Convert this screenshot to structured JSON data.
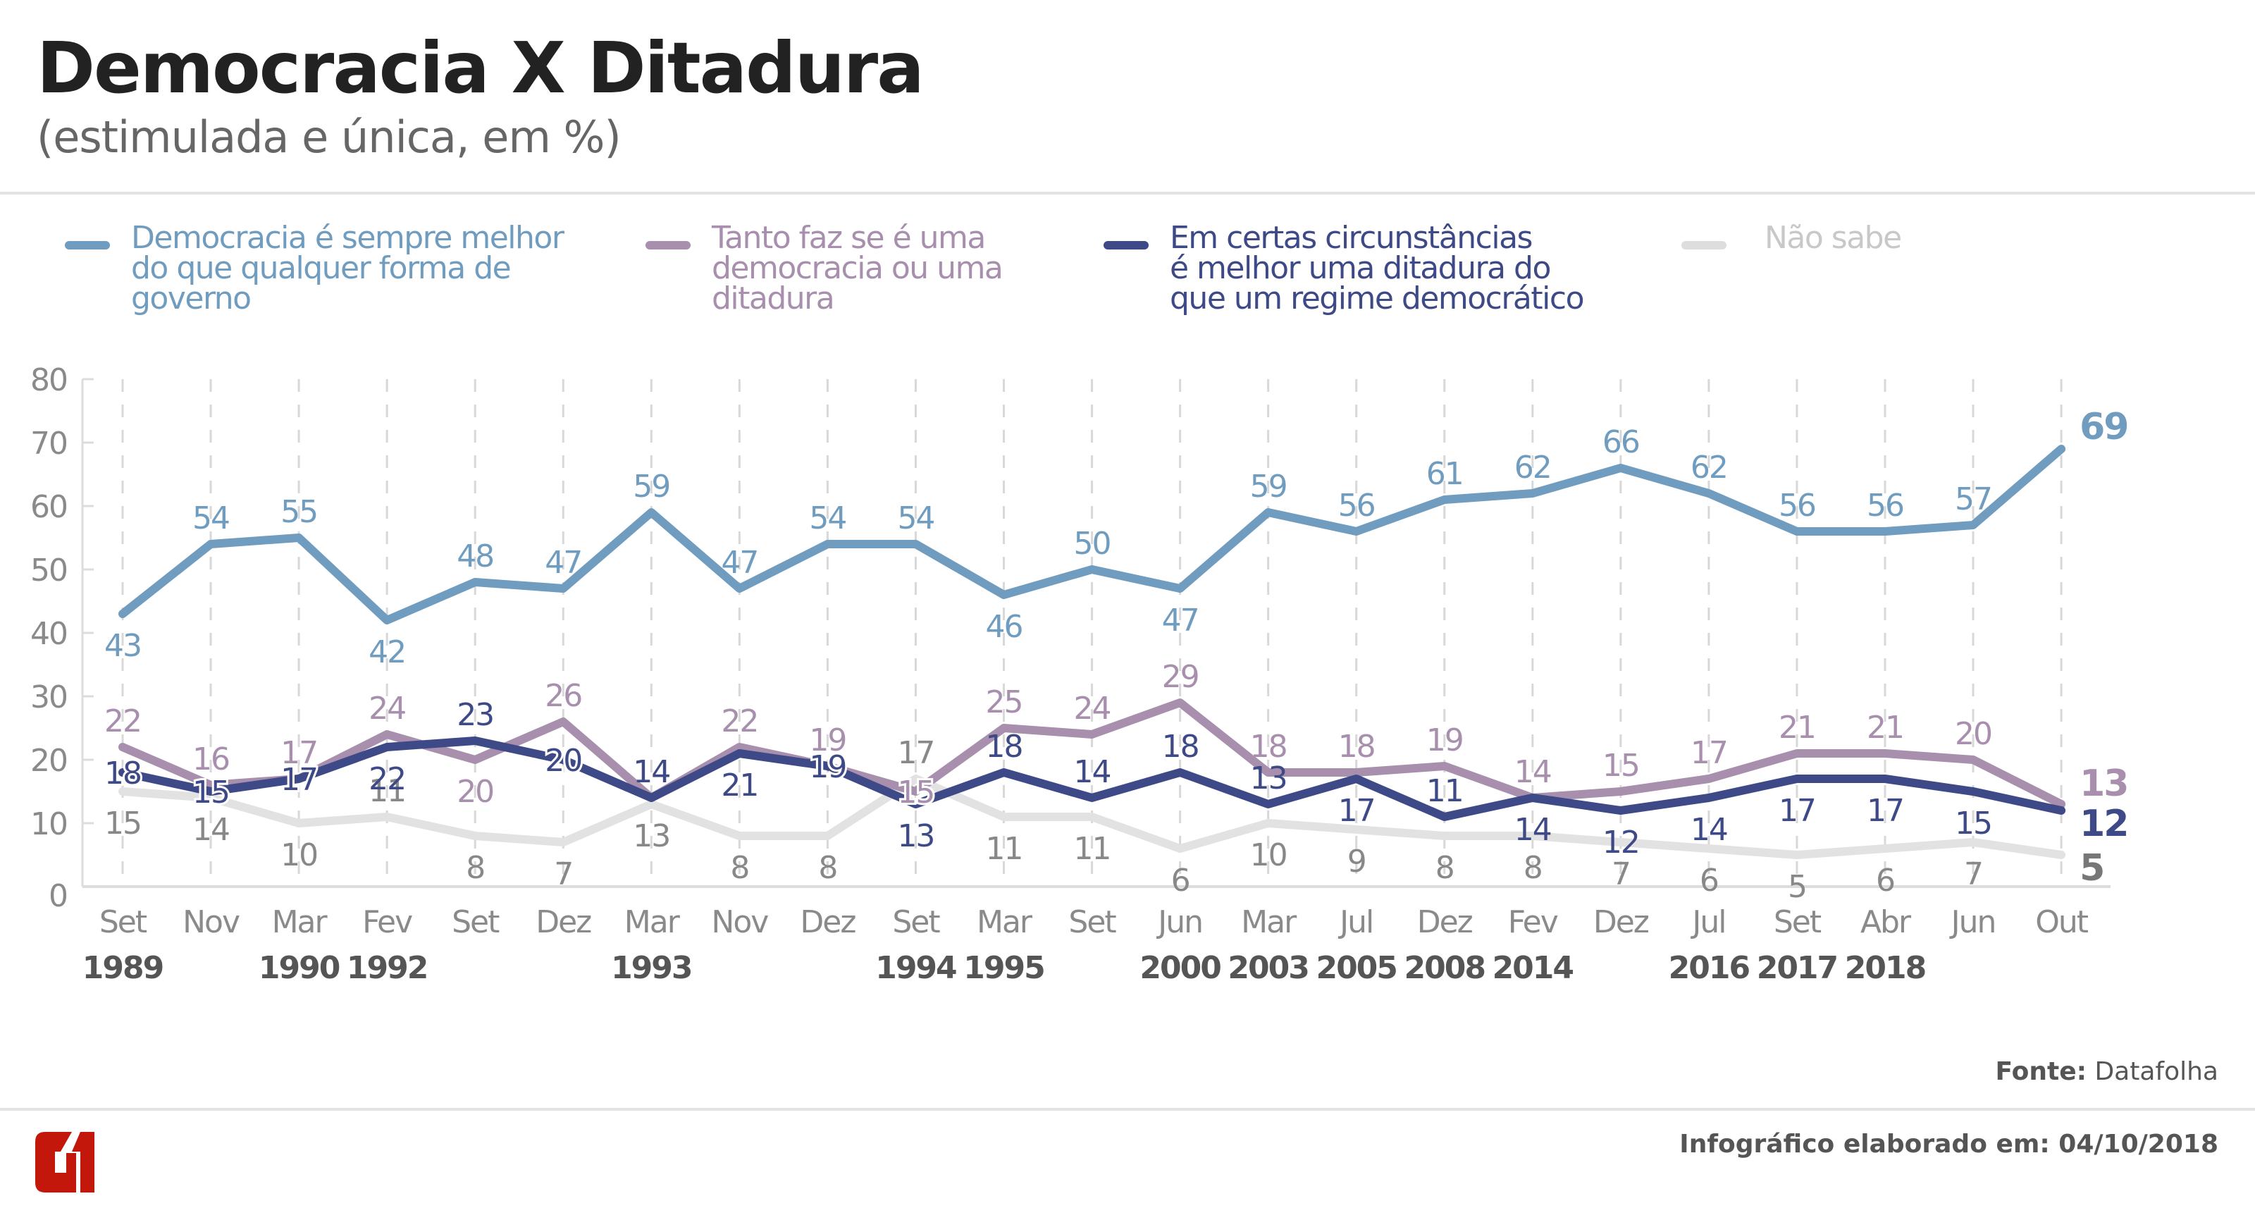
{
  "header": {
    "title": "Democracia X Ditadura",
    "subtitle": "(estimulada e única, em %)"
  },
  "legend": [
    {
      "label": "Democracia é sempre melhor\ndo que qualquer forma de\ngoverno",
      "color": "#6f9cbf"
    },
    {
      "label": "Tanto faz se é uma\ndemocracia ou uma\nditadura",
      "color": "#a78fad"
    },
    {
      "label": "Em certas circunstâncias\né melhor uma ditadura do\nque um regime democrático",
      "color": "#3e4a87"
    },
    {
      "label": "Não sabe",
      "color": "#dddddd"
    }
  ],
  "footer": {
    "source_prefix": "Fonte:",
    "source_name": "Datafolha",
    "credit": "Infográfico elaborado em: 04/10/2018",
    "logo_text": "G1",
    "logo_color": "#c4170c"
  },
  "chart_data": {
    "type": "line",
    "title": "Democracia X Ditadura",
    "subtitle": "(estimulada e única, em %)",
    "xlabel": "",
    "ylabel": "",
    "ylim": [
      0,
      80
    ],
    "yticks": [
      0,
      10,
      20,
      30,
      40,
      50,
      60,
      70,
      80
    ],
    "grid": "vertical dashed",
    "legend_position": "top",
    "categories": [
      "Set",
      "Nov",
      "Mar",
      "Fev",
      "Set",
      "Dez",
      "Mar",
      "Nov",
      "Dez",
      "Set",
      "Mar",
      "Set",
      "Jun",
      "Mar",
      "Jul",
      "Dez",
      "Fev",
      "Dez",
      "Jul",
      "Set",
      "Abr",
      "Jun",
      "Out"
    ],
    "years": [
      "1989",
      "",
      "1990",
      "1992",
      "",
      "",
      "1993",
      "",
      "",
      "1994",
      "1995",
      "",
      "2000",
      "2003",
      "2005",
      "2008",
      "2014",
      "",
      "2016",
      "2017",
      "2018",
      "",
      ""
    ],
    "series": [
      {
        "name": "Democracia é sempre melhor do que qualquer forma de governo",
        "color": "#6f9cbf",
        "label_color": "#6f9cbf",
        "values": [
          43,
          54,
          55,
          42,
          48,
          47,
          59,
          47,
          54,
          54,
          46,
          50,
          47,
          59,
          56,
          61,
          62,
          66,
          62,
          56,
          56,
          57,
          69
        ],
        "label_pos": [
          "below",
          "above",
          "above",
          "below",
          "above",
          "above",
          "above",
          "above",
          "above",
          "above",
          "below",
          "above",
          "below",
          "above",
          "above",
          "above",
          "above",
          "above",
          "above",
          "above",
          "above",
          "above",
          "above"
        ]
      },
      {
        "name": "Tanto faz se é uma democracia ou uma ditadura",
        "color": "#a78fad",
        "label_color": "#a78fad",
        "values": [
          22,
          16,
          17,
          24,
          20,
          26,
          14,
          22,
          19,
          15,
          25,
          24,
          29,
          18,
          18,
          19,
          14,
          15,
          17,
          21,
          21,
          20,
          13
        ],
        "label_pos": [
          "above",
          "above",
          "above",
          "above",
          "below",
          "above",
          "above",
          "above",
          "above",
          "on",
          "above",
          "above",
          "above",
          "above",
          "above",
          "above",
          "above",
          "above",
          "above",
          "above",
          "above",
          "above",
          "above"
        ]
      },
      {
        "name": "Em certas circunstâncias é melhor uma ditadura do que um regime democrático",
        "color": "#3e4a87",
        "label_color": "#3e4a87",
        "values": [
          18,
          15,
          17,
          22,
          23,
          20,
          14,
          21,
          19,
          13,
          18,
          14,
          18,
          13,
          17,
          11,
          14,
          12,
          14,
          17,
          17,
          15,
          12
        ],
        "label_pos": [
          "on",
          "on",
          "on",
          "below",
          "above",
          "on",
          "above",
          "below",
          "on",
          "below",
          "above",
          "above",
          "above",
          "above",
          "below",
          "above",
          "below",
          "below",
          "below",
          "below",
          "below",
          "below",
          "below"
        ]
      },
      {
        "name": "Não sabe",
        "color": "#e2e2e2",
        "label_color": "#888888",
        "values": [
          15,
          14,
          10,
          11,
          8,
          7,
          13,
          8,
          8,
          17,
          11,
          11,
          6,
          10,
          9,
          8,
          8,
          7,
          6,
          5,
          6,
          7,
          5
        ],
        "label_pos": [
          "below",
          "below",
          "below",
          "above",
          "below",
          "below",
          "below",
          "below",
          "below",
          "above",
          "below",
          "below",
          "below",
          "below",
          "below",
          "below",
          "below",
          "below",
          "below",
          "below",
          "below",
          "below",
          "below"
        ]
      }
    ]
  }
}
